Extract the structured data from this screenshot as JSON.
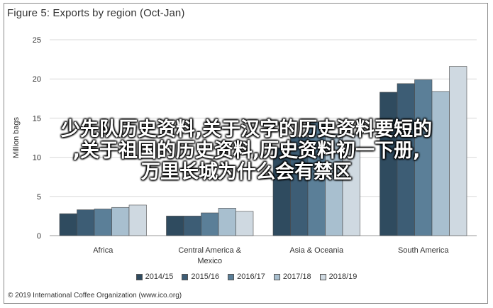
{
  "chart_data": {
    "type": "bar",
    "title": "Figure 5: Exports by region (Oct-Jan)",
    "ylabel": "Million bags",
    "ylim": [
      0,
      25
    ],
    "yticks": [
      0,
      5,
      10,
      15,
      20,
      25
    ],
    "grid": true,
    "legend_position": "bottom",
    "categories": [
      "Africa",
      "Central America & Mexico",
      "Asia & Oceania",
      "South America"
    ],
    "series": [
      {
        "name": "2014/15",
        "color": "#2f4b5f",
        "values": [
          2.8,
          2.5,
          11.2,
          18.3
        ]
      },
      {
        "name": "2015/16",
        "color": "#3d5d75",
        "values": [
          3.3,
          2.5,
          12.6,
          19.4
        ]
      },
      {
        "name": "2016/17",
        "color": "#5b7f98",
        "values": [
          3.4,
          2.9,
          14.5,
          19.9
        ]
      },
      {
        "name": "2017/18",
        "color": "#a8bfcf",
        "values": [
          3.6,
          3.5,
          13.0,
          18.4
        ]
      },
      {
        "name": "2018/19",
        "color": "#cfd9e1",
        "values": [
          3.9,
          3.1,
          13.1,
          21.6
        ]
      }
    ]
  },
  "overlay": {
    "lines": [
      "少先队历史资料,关于汉字的历史资料要短的",
      ",关于祖国的历史资料,历史资料初一下册,",
      "万里长城为什么会有禁区"
    ]
  },
  "footer": {
    "copyright": "© 2019 International Coffee Organization (www.ico.org)"
  }
}
